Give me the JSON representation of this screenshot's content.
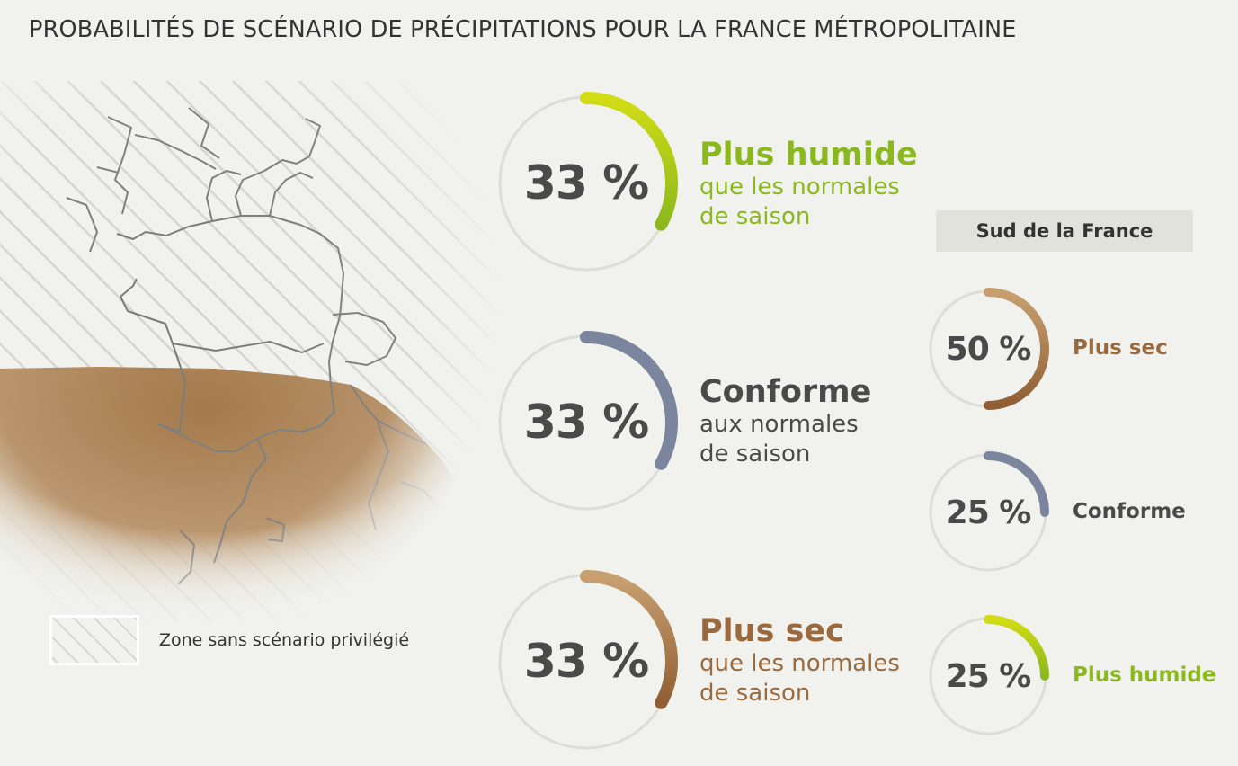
{
  "title": "PROBABILITÉS DE SCÉNARIO DE PRÉCIPITATIONS POUR LA FRANCE MÉTROPOLITAINE",
  "legend": {
    "label": "Zone sans scénario privilégié"
  },
  "colors": {
    "humide": "#8cb81f",
    "conforme": "#7b869e",
    "sec": "#9a6a3e",
    "track": "#dcdcd8",
    "map_dry_zone": "#a47a4c"
  },
  "chart_data": [
    {
      "type": "gauge",
      "region": "France métropolitaine",
      "series": [
        {
          "name": "Plus humide",
          "value": 33,
          "value_label": "33 %",
          "desc": "que les normales de saison",
          "desc_line1": "que les normales",
          "desc_line2": "de saison"
        },
        {
          "name": "Conforme",
          "value": 33,
          "value_label": "33 %",
          "desc": "aux normales de saison",
          "desc_line1": "aux normales",
          "desc_line2": "de saison"
        },
        {
          "name": "Plus sec",
          "value": 33,
          "value_label": "33 %",
          "desc": "que les normales de saison",
          "desc_line1": "que les normales",
          "desc_line2": "de saison"
        }
      ]
    },
    {
      "type": "gauge",
      "title": "Sud de la France",
      "series": [
        {
          "name": "Plus sec",
          "value": 50,
          "value_label": "50 %"
        },
        {
          "name": "Conforme",
          "value": 25,
          "value_label": "25 %"
        },
        {
          "name": "Plus humide",
          "value": 25,
          "value_label": "25 %"
        }
      ]
    }
  ]
}
